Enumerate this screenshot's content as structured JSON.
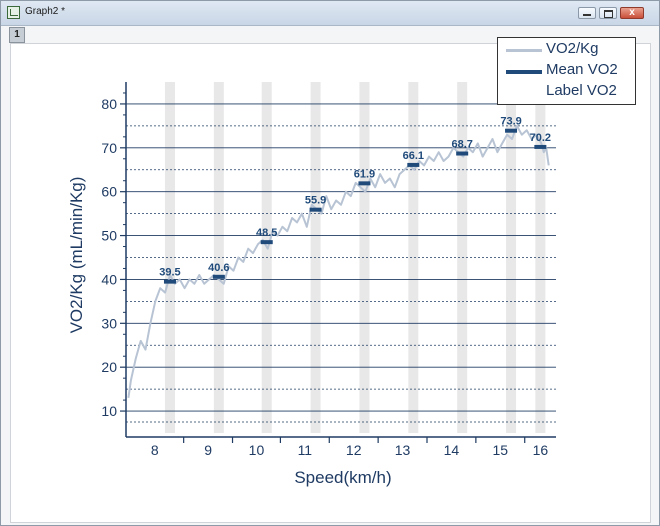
{
  "window": {
    "title": "Graph2 *",
    "page_tab": "1",
    "close_glyph": "x"
  },
  "colors": {
    "axis": "#1f3b63",
    "vo2_line": "#b8c4d4",
    "mean_marker": "#1f4a7a",
    "grid": "#1f3b63",
    "band": "#e8e8e8",
    "label_text": "#1f4a7a"
  },
  "legend": {
    "placement": "top-right",
    "items": [
      "VO2/Kg",
      "Mean VO2",
      "Label VO2"
    ]
  },
  "chart_data": {
    "type": "line",
    "xlabel": "Speed(km/h)",
    "ylabel": "VO2/Kg (mL/min/Kg)",
    "categories": [
      "8",
      "9",
      "10",
      "11",
      "12",
      "13",
      "14",
      "15",
      "16"
    ],
    "y_ticks": [
      10,
      20,
      30,
      40,
      50,
      60,
      70,
      80
    ],
    "ylim": [
      5,
      85
    ],
    "grid": true,
    "series": [
      {
        "name": "VO2/Kg",
        "style": "line",
        "x": [
          7.55,
          7.6,
          7.7,
          7.8,
          7.9,
          8.0,
          8.1,
          8.2,
          8.3,
          8.4,
          8.5,
          8.6,
          8.7,
          8.8,
          8.9,
          9.0,
          9.1,
          9.2,
          9.3,
          9.4,
          9.5,
          9.6,
          9.7,
          9.8,
          9.9,
          10.0,
          10.1,
          10.2,
          10.3,
          10.4,
          10.5,
          10.6,
          10.7,
          10.8,
          10.9,
          11.0,
          11.1,
          11.2,
          11.3,
          11.4,
          11.5,
          11.6,
          11.7,
          11.8,
          11.9,
          12.0,
          12.1,
          12.2,
          12.3,
          12.4,
          12.5,
          12.6,
          12.7,
          12.8,
          12.9,
          13.0,
          13.1,
          13.2,
          13.3,
          13.4,
          13.5,
          13.6,
          13.7,
          13.8,
          13.9,
          14.0,
          14.1,
          14.2,
          14.3,
          14.4,
          14.5,
          14.6,
          14.7,
          14.8,
          14.9,
          15.0,
          15.1,
          15.2,
          15.3,
          15.4,
          15.5,
          15.6,
          15.7,
          15.8,
          15.9,
          16.0,
          16.05,
          16.1,
          16.15
        ],
        "y": [
          13,
          17,
          22,
          26,
          24,
          30,
          35,
          38,
          37,
          41,
          39,
          40,
          38,
          40,
          39,
          41,
          39,
          40,
          41,
          40,
          39,
          43,
          42,
          45,
          44,
          47,
          46,
          48,
          49,
          47,
          51,
          50,
          52,
          51,
          54,
          53,
          55,
          52,
          57,
          56,
          55,
          59,
          56,
          58,
          57,
          60,
          59,
          62,
          61,
          60,
          63,
          61,
          64,
          62,
          63,
          61,
          64,
          65,
          66,
          65,
          67,
          66,
          68,
          67,
          69,
          67,
          68,
          70,
          69,
          68,
          70,
          69,
          71,
          68,
          70,
          72,
          69,
          71,
          73,
          72,
          75,
          73,
          74,
          72,
          73,
          71,
          69,
          70,
          66
        ]
      },
      {
        "name": "Mean VO2",
        "style": "marker",
        "x": [
          8.4,
          9.4,
          10.38,
          11.38,
          12.38,
          13.38,
          14.38,
          15.38,
          15.98
        ],
        "y": [
          39.5,
          40.6,
          48.5,
          55.9,
          61.9,
          66.1,
          68.7,
          73.9,
          70.2
        ],
        "labels": [
          "39.5",
          "40.6",
          "48.5",
          "55.9",
          "61.9",
          "66.1",
          "68.7",
          "73.9",
          "70.2"
        ]
      }
    ],
    "band_x": [
      8.4,
      9.4,
      10.38,
      11.38,
      12.38,
      13.38,
      14.38,
      15.38,
      15.98
    ]
  }
}
